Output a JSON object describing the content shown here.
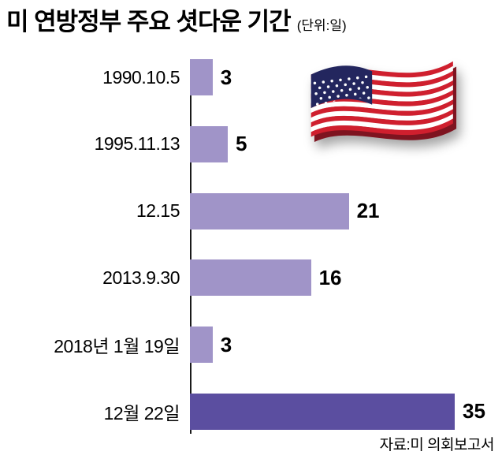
{
  "header": {
    "title": "미 연방정부 주요 셧다운 기간",
    "unit": "(단위:일)",
    "decoration_icon": "us-flag-icon"
  },
  "source": "자료:미 의회보고서",
  "colors": {
    "bar_light": "#a094c8",
    "bar_dark": "#5b4ea0",
    "axis": "#1a1a1a",
    "flag_red": "#cf1f2e",
    "flag_white": "#ffffff",
    "flag_blue": "#23265e",
    "flag_edge_dark": "#7e1420"
  },
  "chart_data": {
    "type": "bar",
    "orientation": "horizontal",
    "title": "미 연방정부 주요 셧다운 기간",
    "unit_label": "(단위:일)",
    "categories": [
      "1990.10.5",
      "1995.11.13",
      "12.15",
      "2013.9.30",
      "2018년 1월 19일",
      "12월 22일"
    ],
    "values": [
      3,
      5,
      21,
      16,
      3,
      35
    ],
    "xlim": [
      0,
      35
    ],
    "bar_colors": [
      "#a094c8",
      "#a094c8",
      "#a094c8",
      "#a094c8",
      "#a094c8",
      "#5b4ea0"
    ],
    "grid": false,
    "legend": false,
    "value_labels": "end-of-bar",
    "source": "자료:미 의회보고서"
  }
}
